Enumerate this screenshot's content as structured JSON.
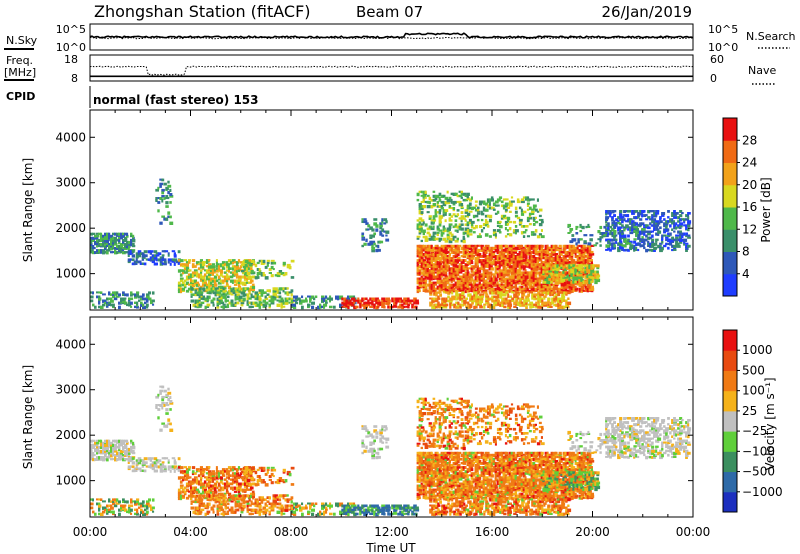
{
  "header": {
    "title": "Zhongshan Station (fitACF)",
    "beam": "Beam 07",
    "date": "26/Jan/2019"
  },
  "noise_panel": {
    "left_label": "N.Sky",
    "right_label": "N.Search",
    "left_ticks": [
      "10^5",
      "10^0"
    ],
    "right_ticks": [
      "10^5",
      "10^0"
    ]
  },
  "freq_panel": {
    "left_label_line1": "Freq.",
    "left_label_line2": "[MHz]",
    "right_label": "Nave",
    "left_ticks": [
      "18",
      "8"
    ],
    "right_ticks": [
      "60",
      "0"
    ]
  },
  "cpid": {
    "label": "CPID",
    "program": "normal (fast stereo) 153"
  },
  "time_axis": {
    "label": "Time UT",
    "ticks": [
      "00:00",
      "04:00",
      "08:00",
      "12:00",
      "16:00",
      "20:00",
      "00:00"
    ],
    "hours": [
      0,
      4,
      8,
      12,
      16,
      20,
      24
    ]
  },
  "chart_data": [
    {
      "type": "heatmap",
      "name": "power",
      "ylabel": "Slant Range [km]",
      "ylim": [
        200,
        4600
      ],
      "yticks": [
        1000,
        2000,
        3000,
        4000
      ],
      "xlim_hours": [
        0,
        24
      ],
      "colorbar_label": "Power [dB]",
      "colorbar_ticks": [
        "4",
        "8",
        "12",
        "16",
        "20",
        "24",
        "28"
      ],
      "colors": [
        "#1f3dff",
        "#2e58b8",
        "#3a8f6a",
        "#4fb84a",
        "#d8d820",
        "#f2a21a",
        "#f06a14",
        "#e81010"
      ]
    },
    {
      "type": "heatmap",
      "name": "velocity",
      "ylabel": "Slant Range [km]",
      "ylim": [
        200,
        4600
      ],
      "yticks": [
        1000,
        2000,
        3000,
        4000
      ],
      "xlim_hours": [
        0,
        24
      ],
      "colorbar_label": "Velocity [m s⁻¹]",
      "colorbar_ticks": [
        "1000",
        "500",
        "100",
        "25",
        "−25",
        "−100",
        "−500",
        "−1000"
      ],
      "colors": [
        "#1c2fbf",
        "#2e6aa8",
        "#3b8f5f",
        "#5fcf3a",
        "#c0c0c0",
        "#f5b21a",
        "#f07a14",
        "#e84a10",
        "#e81010"
      ]
    }
  ]
}
